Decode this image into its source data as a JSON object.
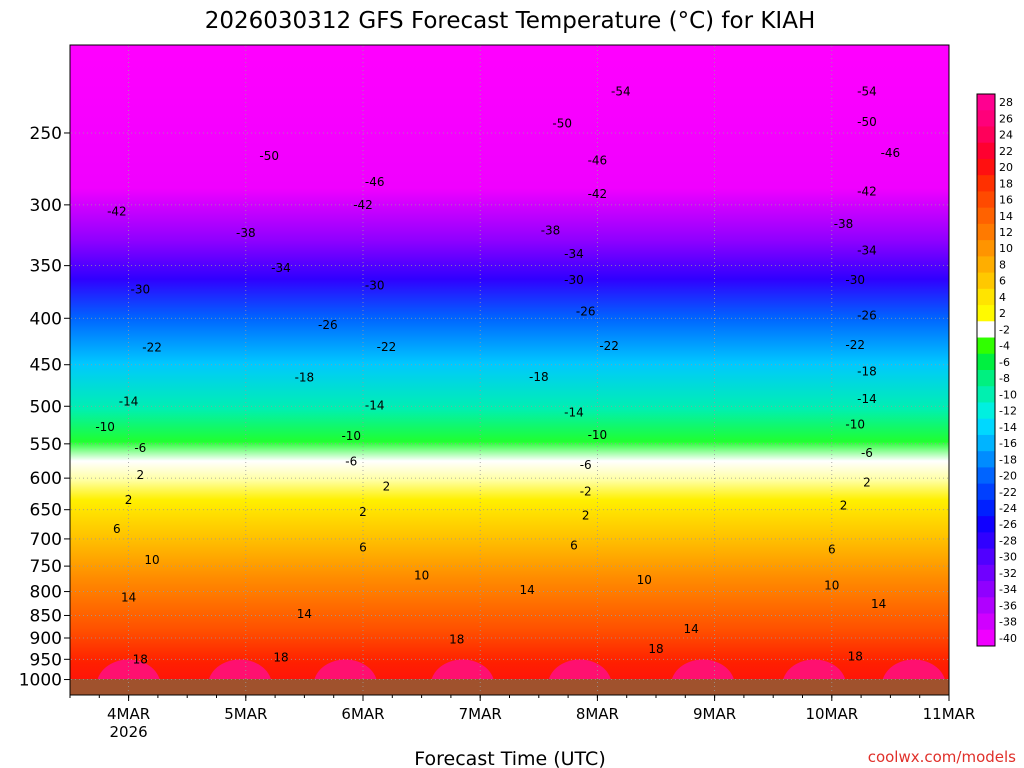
{
  "chart_data": {
    "type": "heatmap",
    "title": "2026030312 GFS Forecast Temperature (°C) for KIAH",
    "xlabel": "Forecast Time (UTC)",
    "credit": "coolwx.com/models",
    "y_axis": {
      "ticks": [
        250,
        300,
        350,
        400,
        450,
        500,
        550,
        600,
        650,
        700,
        750,
        800,
        850,
        900,
        950,
        1000
      ],
      "ylim": [
        200,
        1040
      ],
      "scale": "log-pressure",
      "inverted": true
    },
    "x_axis": {
      "ticks": [
        {
          "label": "4MAR",
          "sub": "2026",
          "day": 4
        },
        {
          "label": "5MAR",
          "sub": "",
          "day": 5
        },
        {
          "label": "6MAR",
          "sub": "",
          "day": 6
        },
        {
          "label": "7MAR",
          "sub": "",
          "day": 7
        },
        {
          "label": "8MAR",
          "sub": "",
          "day": 8
        },
        {
          "label": "9MAR",
          "sub": "",
          "day": 9
        },
        {
          "label": "10MAR",
          "sub": "",
          "day": 10
        },
        {
          "label": "11MAR",
          "sub": "",
          "day": 11
        }
      ],
      "xlim_days": [
        3.5,
        11.0
      ]
    },
    "grid": true,
    "colorbar": {
      "placement": "right",
      "levels": [
        28,
        26,
        24,
        22,
        20,
        18,
        16,
        14,
        12,
        10,
        8,
        6,
        4,
        2,
        -2,
        -4,
        -6,
        -8,
        -10,
        -12,
        -14,
        -16,
        -18,
        -20,
        -22,
        -24,
        -26,
        -28,
        -30,
        -32,
        -34,
        -36,
        -38,
        -40
      ],
      "colors": [
        "#ff0090",
        "#ff007a",
        "#ff005a",
        "#ff0030",
        "#ff1010",
        "#ff3000",
        "#ff4a00",
        "#ff6200",
        "#ff7a00",
        "#ff9400",
        "#ffae00",
        "#ffc800",
        "#ffe400",
        "#fffa00",
        "#ffffff",
        "#30ff00",
        "#00f040",
        "#00f080",
        "#00f0b0",
        "#00f0e0",
        "#00d8ff",
        "#00b4ff",
        "#008cff",
        "#0064ff",
        "#0040ff",
        "#0020ff",
        "#1000ff",
        "#3000ff",
        "#5000ff",
        "#7000ff",
        "#9000ff",
        "#b000ff",
        "#d000ff",
        "#f000ff"
      ]
    },
    "series": [
      {
        "type": "contour-labels",
        "values": [
          {
            "t": 5.2,
            "p": 265,
            "v": -50
          },
          {
            "t": 6.1,
            "p": 283,
            "v": -46
          },
          {
            "t": 6.0,
            "p": 300,
            "v": -42
          },
          {
            "t": 3.9,
            "p": 305,
            "v": -42
          },
          {
            "t": 5.0,
            "p": 322,
            "v": -38
          },
          {
            "t": 5.3,
            "p": 352,
            "v": -34
          },
          {
            "t": 4.1,
            "p": 372,
            "v": -30
          },
          {
            "t": 6.1,
            "p": 368,
            "v": -30
          },
          {
            "t": 5.7,
            "p": 407,
            "v": -26
          },
          {
            "t": 4.2,
            "p": 431,
            "v": -22
          },
          {
            "t": 6.2,
            "p": 430,
            "v": -22
          },
          {
            "t": 5.5,
            "p": 465,
            "v": -18
          },
          {
            "t": 4.0,
            "p": 494,
            "v": -14
          },
          {
            "t": 6.1,
            "p": 499,
            "v": -14
          },
          {
            "t": 3.8,
            "p": 527,
            "v": -10
          },
          {
            "t": 5.9,
            "p": 539,
            "v": -10
          },
          {
            "t": 4.1,
            "p": 556,
            "v": -6
          },
          {
            "t": 5.9,
            "p": 575,
            "v": -6
          },
          {
            "t": 4.1,
            "p": 595,
            "v": 2
          },
          {
            "t": 6.2,
            "p": 613,
            "v": 2
          },
          {
            "t": 4.0,
            "p": 634,
            "v": 2
          },
          {
            "t": 6.0,
            "p": 654,
            "v": 2
          },
          {
            "t": 3.9,
            "p": 683,
            "v": 6
          },
          {
            "t": 6.0,
            "p": 715,
            "v": 6
          },
          {
            "t": 4.2,
            "p": 738,
            "v": 10
          },
          {
            "t": 6.5,
            "p": 768,
            "v": 10
          },
          {
            "t": 4.0,
            "p": 812,
            "v": 14
          },
          {
            "t": 5.5,
            "p": 847,
            "v": 14
          },
          {
            "t": 7.9,
            "p": 621,
            "v": -2
          },
          {
            "t": 7.8,
            "p": 508,
            "v": -14
          },
          {
            "t": 8.0,
            "p": 538,
            "v": -10
          },
          {
            "t": 7.5,
            "p": 464,
            "v": -18
          },
          {
            "t": 8.1,
            "p": 429,
            "v": -22
          },
          {
            "t": 7.9,
            "p": 393,
            "v": -26
          },
          {
            "t": 7.8,
            "p": 363,
            "v": -30
          },
          {
            "t": 7.8,
            "p": 340,
            "v": -34
          },
          {
            "t": 7.6,
            "p": 320,
            "v": -38
          },
          {
            "t": 8.0,
            "p": 292,
            "v": -42
          },
          {
            "t": 8.0,
            "p": 268,
            "v": -46
          },
          {
            "t": 7.7,
            "p": 244,
            "v": -50
          },
          {
            "t": 8.2,
            "p": 225,
            "v": -54
          },
          {
            "t": 7.9,
            "p": 580,
            "v": -6
          },
          {
            "t": 7.9,
            "p": 660,
            "v": 2
          },
          {
            "t": 7.8,
            "p": 712,
            "v": 6
          },
          {
            "t": 7.4,
            "p": 797,
            "v": 14
          },
          {
            "t": 8.4,
            "p": 777,
            "v": 10
          },
          {
            "t": 8.8,
            "p": 880,
            "v": 14
          },
          {
            "t": 8.5,
            "p": 925,
            "v": 18
          },
          {
            "t": 6.8,
            "p": 903,
            "v": 18
          },
          {
            "t": 4.1,
            "p": 950,
            "v": 18
          },
          {
            "t": 5.3,
            "p": 946,
            "v": 18
          },
          {
            "t": 10.3,
            "p": 225,
            "v": -54
          },
          {
            "t": 10.3,
            "p": 243,
            "v": -50
          },
          {
            "t": 10.5,
            "p": 263,
            "v": -46
          },
          {
            "t": 10.3,
            "p": 290,
            "v": -42
          },
          {
            "t": 10.1,
            "p": 315,
            "v": -38
          },
          {
            "t": 10.3,
            "p": 337,
            "v": -34
          },
          {
            "t": 10.2,
            "p": 363,
            "v": -30
          },
          {
            "t": 10.3,
            "p": 397,
            "v": -26
          },
          {
            "t": 10.2,
            "p": 428,
            "v": -22
          },
          {
            "t": 10.3,
            "p": 458,
            "v": -18
          },
          {
            "t": 10.3,
            "p": 491,
            "v": -14
          },
          {
            "t": 10.2,
            "p": 524,
            "v": -10
          },
          {
            "t": 10.3,
            "p": 563,
            "v": -6
          },
          {
            "t": 10.3,
            "p": 607,
            "v": 2
          },
          {
            "t": 10.1,
            "p": 643,
            "v": 2
          },
          {
            "t": 10.0,
            "p": 719,
            "v": 6
          },
          {
            "t": 10.0,
            "p": 788,
            "v": 10
          },
          {
            "t": 10.4,
            "p": 826,
            "v": 14
          },
          {
            "t": 10.2,
            "p": 943,
            "v": 18
          }
        ]
      }
    ]
  }
}
